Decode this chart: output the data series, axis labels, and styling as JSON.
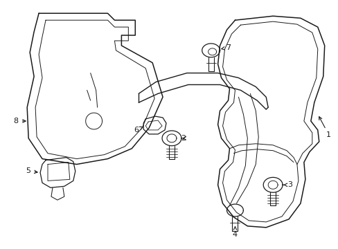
{
  "background_color": "#ffffff",
  "line_color": "#1a1a1a",
  "line_width": 1.0,
  "label_fontsize": 8,
  "fig_width": 4.89,
  "fig_height": 3.6
}
